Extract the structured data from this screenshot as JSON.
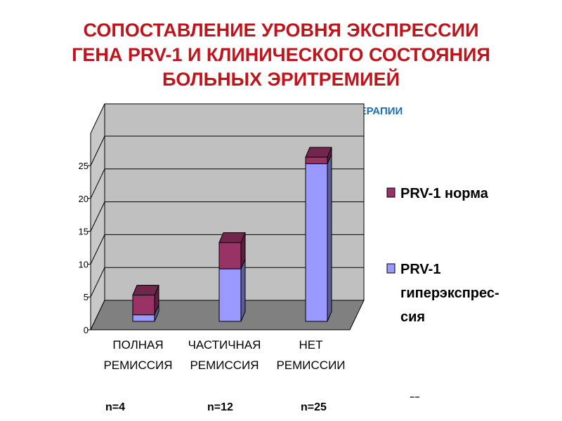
{
  "header": {
    "title_lines": [
      "СОПОСТАВЛЕНИЕ УРОВНЯ ЭКСПРЕССИИ",
      "ГЕНА PRV-1 И КЛИНИЧЕСКОГО СОСТОЯНИЯ",
      "БОЛЬНЫХ ЭРИТРЕМИЕЙ"
    ],
    "subtitle": "НЕЗАВИСИМО ОТ ПРОВОДИВШЕЙСЯ ТЕРАПИИ"
  },
  "chart_data": {
    "type": "bar",
    "stacked": true,
    "three_d": true,
    "categories": [
      [
        "ПОЛНАЯ",
        "РЕМИССИЯ"
      ],
      [
        "ЧАСТИЧНАЯ",
        "РЕМИССИЯ"
      ],
      [
        "НЕТ",
        "РЕМИССИИ"
      ]
    ],
    "series": [
      {
        "name": "PRV-1 гиперэкспрес-ция",
        "legend_lines": [
          "PRV-1",
          "гиперэкспрес-",
          "сия"
        ],
        "values": [
          1,
          8,
          24
        ],
        "color": "#9999ff"
      },
      {
        "name": "PRV-1 норма",
        "legend_lines": [
          "PRV-1 норма"
        ],
        "values": [
          3,
          4,
          1
        ],
        "color": "#993366"
      }
    ],
    "y_ticks": [
      "0",
      "5",
      "10",
      "15",
      "20",
      "25"
    ],
    "ylim": [
      0,
      25
    ],
    "grid": true,
    "legend_position": "right",
    "n_counts": [
      "n=4",
      "n=12",
      "n=25"
    ],
    "footnote": "⁻⁻"
  }
}
